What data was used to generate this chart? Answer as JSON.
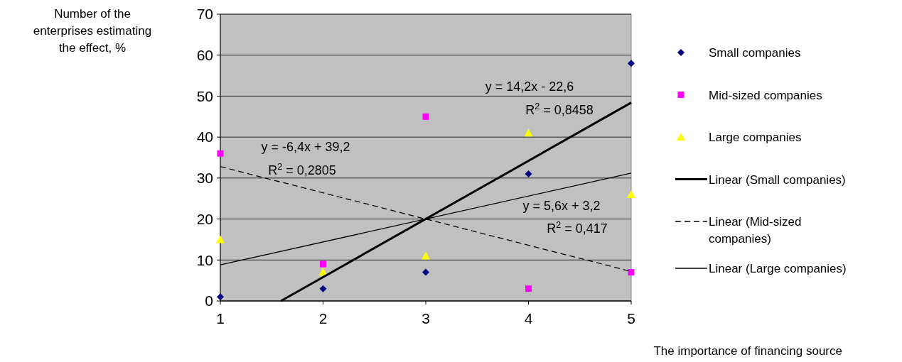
{
  "chart_data": {
    "type": "scatter",
    "xlabel": "The importance of financing source",
    "ylabel": "Number of the enterprises estimating the effect, %",
    "xlim": [
      1,
      5
    ],
    "xticks": [
      1,
      2,
      3,
      4,
      5
    ],
    "ylim": [
      0,
      70
    ],
    "yticks": [
      0,
      10,
      20,
      30,
      40,
      50,
      60,
      70
    ],
    "grid": "y",
    "legend": "right",
    "series": [
      {
        "name": "Small companies",
        "marker": "diamond",
        "color": "#000080",
        "x": [
          1,
          2,
          3,
          4,
          5
        ],
        "values": [
          1,
          3,
          7,
          31,
          58
        ]
      },
      {
        "name": "Mid-sized companies",
        "marker": "square",
        "color": "#ff00ff",
        "x": [
          1,
          2,
          3,
          4,
          5
        ],
        "values": [
          36,
          9,
          45,
          3,
          7
        ]
      },
      {
        "name": "Large companies",
        "marker": "triangle",
        "color": "#ffff00",
        "x": [
          1,
          2,
          3,
          4,
          5
        ],
        "values": [
          15,
          7,
          11,
          41,
          26
        ]
      },
      {
        "name": "Linear (Small companies)",
        "type": "line",
        "line_style": "solid",
        "color": "#000000",
        "x": [
          1.59,
          5
        ],
        "values": [
          0,
          48.4
        ]
      },
      {
        "name": "Linear (Mid-sized companies)",
        "type": "line",
        "line_style": "dashed",
        "color": "#000000",
        "x": [
          1,
          5
        ],
        "values": [
          32.8,
          7.2
        ]
      },
      {
        "name": "Linear (Large companies)",
        "type": "line",
        "line_style": "solid",
        "color": "#000000",
        "x": [
          1,
          5
        ],
        "values": [
          8.8,
          31.2
        ]
      }
    ],
    "annotations": [
      "y = 14,2x - 22,6",
      "R$^{2}$ = 0,8458",
      "y = -6,4x + 39,2",
      "R$^{2}$ = 0,2805",
      "y = 5,6x + 3,2",
      "R$^{2}$ = 0,417"
    ]
  }
}
